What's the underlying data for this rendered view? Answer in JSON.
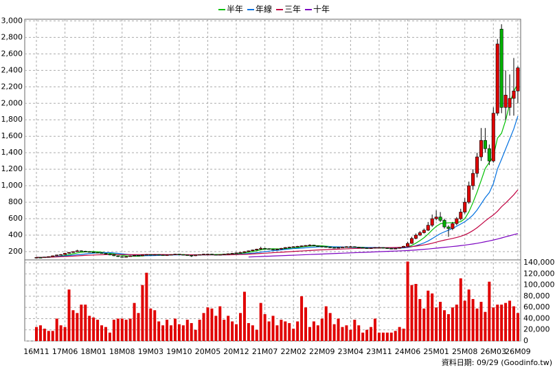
{
  "chart_data": {
    "type": "candlestick",
    "categories": [
      "16M11",
      null,
      null,
      null,
      null,
      null,
      null,
      "17M06",
      null,
      null,
      null,
      null,
      null,
      null,
      "18M01",
      null,
      null,
      null,
      null,
      null,
      null,
      "18M08",
      null,
      null,
      null,
      null,
      null,
      null,
      "19M03",
      null,
      null,
      null,
      null,
      null,
      null,
      "19M10",
      null,
      null,
      null,
      null,
      null,
      null,
      "20M05",
      null,
      null,
      null,
      null,
      null,
      null,
      "20M12",
      null,
      null,
      null,
      null,
      null,
      null,
      "21M07",
      null,
      null,
      null,
      null,
      null,
      null,
      "22M02",
      null,
      null,
      null,
      null,
      null,
      null,
      "22M09",
      null,
      null,
      null,
      null,
      null,
      null,
      "23M04",
      null,
      null,
      null,
      null,
      null,
      null,
      "23M11",
      null,
      null,
      null,
      null,
      null,
      null,
      "24M06",
      null,
      null,
      null,
      null,
      null,
      null,
      "25M01",
      null,
      null,
      null,
      null,
      null,
      null,
      "25M08",
      null,
      null,
      null,
      null,
      null,
      null,
      "26M03",
      null,
      null,
      null,
      null,
      null,
      "26M09"
    ],
    "open": [
      125,
      130,
      128,
      135,
      140,
      150,
      160,
      165,
      180,
      190,
      200,
      210,
      205,
      200,
      195,
      190,
      185,
      180,
      170,
      160,
      150,
      140,
      135,
      140,
      150,
      155,
      150,
      160,
      165,
      160,
      165,
      160,
      155,
      160,
      165,
      170,
      165,
      160,
      155,
      150,
      160,
      165,
      170,
      170,
      165,
      160,
      165,
      170,
      175,
      180,
      185,
      190,
      200,
      210,
      220,
      230,
      240,
      235,
      230,
      225,
      230,
      240,
      250,
      255,
      260,
      265,
      270,
      275,
      280,
      270,
      265,
      260,
      255,
      250,
      245,
      250,
      255,
      260,
      260,
      255,
      250,
      245,
      240,
      245,
      250,
      250,
      245,
      240,
      235,
      240,
      250,
      265,
      300,
      360,
      400,
      430,
      460,
      520,
      600,
      620,
      580,
      500,
      480,
      540,
      600,
      680,
      800,
      1000,
      1150,
      1350,
      1550,
      1450,
      1300,
      1880,
      2900,
      1950,
      1950,
      2060,
      2150
    ],
    "high": [
      135,
      134,
      138,
      143,
      153,
      163,
      170,
      184,
      195,
      205,
      222,
      215,
      210,
      205,
      200,
      195,
      190,
      184,
      174,
      165,
      155,
      145,
      145,
      155,
      160,
      158,
      164,
      170,
      168,
      170,
      168,
      163,
      164,
      168,
      174,
      173,
      168,
      163,
      158,
      164,
      168,
      174,
      176,
      173,
      168,
      168,
      174,
      179,
      184,
      189,
      195,
      205,
      214,
      224,
      235,
      260,
      245,
      240,
      235,
      235,
      245,
      255,
      260,
      265,
      270,
      275,
      280,
      290,
      284,
      274,
      270,
      264,
      259,
      254,
      255,
      260,
      265,
      270,
      264,
      259,
      254,
      249,
      250,
      255,
      256,
      254,
      249,
      244,
      245,
      255,
      270,
      320,
      380,
      420,
      450,
      480,
      560,
      650,
      700,
      680,
      600,
      520,
      560,
      620,
      720,
      850,
      1050,
      1200,
      1400,
      1700,
      1700,
      1500,
      1950,
      2780,
      2960,
      2400,
      2350,
      2550,
      2450
    ],
    "low": [
      122,
      124,
      126,
      132,
      138,
      147,
      156,
      162,
      176,
      186,
      196,
      200,
      195,
      190,
      186,
      180,
      175,
      165,
      155,
      145,
      135,
      128,
      130,
      137,
      146,
      145,
      147,
      156,
      156,
      157,
      155,
      150,
      152,
      156,
      161,
      161,
      156,
      150,
      135,
      146,
      156,
      161,
      164,
      161,
      156,
      157,
      161,
      166,
      171,
      176,
      181,
      186,
      196,
      205,
      215,
      225,
      230,
      225,
      220,
      221,
      226,
      236,
      245,
      250,
      255,
      260,
      265,
      270,
      265,
      260,
      255,
      250,
      245,
      240,
      241,
      246,
      251,
      255,
      250,
      245,
      240,
      235,
      236,
      241,
      244,
      240,
      235,
      230,
      231,
      236,
      246,
      260,
      295,
      350,
      390,
      420,
      450,
      500,
      580,
      560,
      480,
      380,
      460,
      520,
      580,
      660,
      780,
      950,
      1100,
      1300,
      1400,
      1250,
      1280,
      1850,
      1880,
      1800,
      1850,
      1850,
      2000
    ],
    "close": [
      130,
      128,
      135,
      140,
      150,
      160,
      165,
      180,
      190,
      200,
      210,
      205,
      200,
      195,
      190,
      185,
      180,
      170,
      160,
      150,
      140,
      135,
      140,
      150,
      155,
      150,
      160,
      165,
      160,
      165,
      160,
      155,
      160,
      165,
      170,
      165,
      160,
      155,
      150,
      160,
      165,
      170,
      170,
      165,
      160,
      165,
      170,
      175,
      180,
      185,
      190,
      200,
      210,
      220,
      230,
      240,
      235,
      230,
      225,
      230,
      240,
      250,
      255,
      260,
      265,
      270,
      275,
      280,
      270,
      265,
      260,
      255,
      250,
      245,
      250,
      255,
      260,
      260,
      255,
      250,
      245,
      240,
      245,
      250,
      250,
      245,
      240,
      235,
      240,
      250,
      265,
      300,
      360,
      400,
      430,
      460,
      520,
      600,
      620,
      580,
      500,
      480,
      540,
      600,
      680,
      800,
      1000,
      1150,
      1350,
      1550,
      1450,
      1300,
      1880,
      2720,
      1950,
      2100,
      2060,
      2150,
      2430
    ],
    "up_color": "#e00000",
    "down_color": "#00b000",
    "series": [
      {
        "name": "半年",
        "color": "#00c000",
        "values": [
          130,
          129,
          131,
          133,
          137,
          141,
          146,
          155,
          164,
          174,
          184,
          192,
          198,
          200,
          200,
          198,
          193,
          187,
          180,
          173,
          164,
          156,
          149,
          146,
          145,
          145,
          148,
          153,
          157,
          159,
          160,
          161,
          161,
          162,
          163,
          164,
          164,
          163,
          161,
          160,
          159,
          160,
          162,
          164,
          165,
          166,
          167,
          168,
          170,
          174,
          179,
          185,
          193,
          201,
          211,
          222,
          229,
          234,
          235,
          234,
          233,
          235,
          239,
          243,
          249,
          257,
          263,
          268,
          270,
          271,
          270,
          266,
          262,
          257,
          254,
          253,
          253,
          253,
          253,
          253,
          252,
          250,
          248,
          246,
          246,
          246,
          245,
          244,
          243,
          243,
          248,
          257,
          276,
          303,
          334,
          369,
          412,
          462,
          507,
          538,
          547,
          550,
          553,
          553,
          563,
          600,
          683,
          795,
          922,
          1063,
          1208,
          1283,
          1355,
          1577,
          1637,
          1792,
          1995,
          2147,
          2235
        ]
      },
      {
        "name": "年線",
        "color": "#0070e0",
        "values": [
          130,
          129,
          131,
          133,
          137,
          141,
          144,
          149,
          153,
          158,
          163,
          166,
          172,
          177,
          181,
          185,
          187,
          188,
          188,
          184,
          179,
          173,
          168,
          163,
          159,
          155,
          153,
          152,
          152,
          153,
          155,
          157,
          158,
          159,
          160,
          161,
          161,
          160,
          160,
          160,
          160,
          160,
          161,
          161,
          160,
          160,
          161,
          162,
          164,
          166,
          169,
          173,
          177,
          182,
          187,
          194,
          200,
          206,
          211,
          216,
          222,
          227,
          232,
          237,
          240,
          243,
          247,
          251,
          254,
          257,
          259,
          260,
          260,
          259,
          258,
          257,
          255,
          253,
          252,
          250,
          250,
          250,
          250,
          250,
          249,
          248,
          247,
          246,
          245,
          245,
          246,
          250,
          259,
          272,
          288,
          306,
          329,
          358,
          389,
          418,
          440,
          460,
          483,
          508,
          535,
          563,
          600,
          645,
          705,
          780,
          855,
          916,
          1025,
          1203,
          1321,
          1445,
          1567,
          1689,
          1845
        ]
      },
      {
        "name": "三年",
        "color": "#c00040",
        "values": [
          130,
          130,
          131,
          132,
          134,
          136,
          138,
          140,
          143,
          146,
          149,
          152,
          155,
          157,
          159,
          161,
          162,
          163,
          164,
          164,
          164,
          164,
          164,
          164,
          164,
          164,
          164,
          165,
          165,
          165,
          165,
          165,
          164,
          164,
          163,
          163,
          163,
          162,
          162,
          161,
          161,
          161,
          161,
          161,
          161,
          161,
          161,
          161,
          162,
          163,
          165,
          167,
          169,
          172,
          175,
          178,
          181,
          184,
          187,
          190,
          193,
          196,
          199,
          202,
          205,
          208,
          211,
          214,
          217,
          220,
          222,
          224,
          226,
          228,
          230,
          232,
          234,
          236,
          238,
          240,
          242,
          243,
          244,
          245,
          246,
          247,
          248,
          249,
          250,
          251,
          253,
          256,
          261,
          267,
          274,
          282,
          291,
          302,
          315,
          328,
          340,
          350,
          360,
          372,
          386,
          404,
          427,
          456,
          490,
          530,
          572,
          610,
          645,
          690,
          745,
          790,
          840,
          890,
          950
        ]
      },
      {
        "name": "十年",
        "color": "#7a00c0",
        "values": [
          null,
          null,
          null,
          null,
          null,
          null,
          null,
          null,
          null,
          null,
          null,
          null,
          null,
          null,
          null,
          null,
          null,
          null,
          null,
          null,
          null,
          null,
          null,
          null,
          null,
          null,
          null,
          null,
          null,
          null,
          null,
          null,
          null,
          null,
          null,
          null,
          null,
          null,
          null,
          null,
          null,
          null,
          null,
          null,
          null,
          null,
          null,
          null,
          null,
          null,
          null,
          null,
          135,
          137,
          139,
          141,
          143,
          145,
          147,
          149,
          151,
          153,
          155,
          157,
          159,
          161,
          163,
          165,
          167,
          169,
          171,
          173,
          175,
          177,
          179,
          181,
          183,
          185,
          187,
          189,
          191,
          193,
          195,
          197,
          199,
          201,
          203,
          205,
          207,
          209,
          211,
          214,
          217,
          220,
          224,
          228,
          232,
          237,
          242,
          247,
          252,
          257,
          262,
          267,
          273,
          279,
          286,
          293,
          301,
          310,
          320,
          330,
          341,
          353,
          366,
          380,
          393,
          406,
          420
        ]
      }
    ],
    "ylim": [
      100,
      3020
    ],
    "yticks": [
      200,
      400,
      600,
      800,
      {
        "value": 1000,
        "label": "1,000"
      },
      {
        "value": 1200,
        "label": "1,200"
      },
      {
        "value": 1400,
        "label": "1,400"
      },
      {
        "value": 1600,
        "label": "1,600"
      },
      {
        "value": 1800,
        "label": "1,800"
      },
      {
        "value": 2000,
        "label": "2,000"
      },
      {
        "value": 2200,
        "label": "2,200"
      },
      {
        "value": 2400,
        "label": "2,400"
      },
      {
        "value": 2600,
        "label": "2,600"
      },
      {
        "value": 2800,
        "label": "2,800"
      },
      {
        "value": 3000,
        "label": "3,000"
      }
    ],
    "volume": {
      "color": "#e00000",
      "values": [
        25000,
        28000,
        22000,
        18000,
        18000,
        40000,
        28000,
        25000,
        92000,
        55000,
        50000,
        65000,
        65000,
        45000,
        42000,
        38000,
        28000,
        25000,
        15000,
        38000,
        40000,
        40000,
        38000,
        40000,
        68000,
        50000,
        100000,
        122000,
        58000,
        55000,
        35000,
        28000,
        38000,
        28000,
        40000,
        30000,
        28000,
        38000,
        32000,
        20000,
        38000,
        50000,
        60000,
        58000,
        45000,
        62000,
        38000,
        45000,
        35000,
        30000,
        50000,
        88000,
        32000,
        28000,
        20000,
        68000,
        48000,
        35000,
        45000,
        28000,
        38000,
        35000,
        32000,
        22000,
        35000,
        80000,
        60000,
        25000,
        35000,
        28000,
        40000,
        62000,
        50000,
        30000,
        40000,
        25000,
        28000,
        20000,
        38000,
        28000,
        15000,
        20000,
        25000,
        40000,
        15000,
        15000,
        15000,
        15000,
        18000,
        25000,
        22000,
        142000,
        100000,
        102000,
        75000,
        58000,
        90000,
        85000,
        60000,
        70000,
        55000,
        48000,
        60000,
        65000,
        112000,
        72000,
        92000,
        75000,
        58000,
        70000,
        52000,
        106000,
        60000,
        65000,
        65000,
        68000,
        72000,
        62000,
        50000
      ],
      "ylim": [
        0,
        145000
      ],
      "yticks": [
        0,
        {
          "value": 20000,
          "label": "20,000"
        },
        {
          "value": 40000,
          "label": "40,000"
        },
        {
          "value": 60000,
          "label": "60,000"
        },
        {
          "value": 80000,
          "label": "80,000"
        },
        {
          "value": 100000,
          "label": "100,000"
        },
        {
          "value": 120000,
          "label": "120,000"
        },
        {
          "value": 140000,
          "label": "140,000"
        }
      ]
    },
    "grid": true,
    "footer": "資料日期: 09/29 (Goodinfo.tw)"
  }
}
